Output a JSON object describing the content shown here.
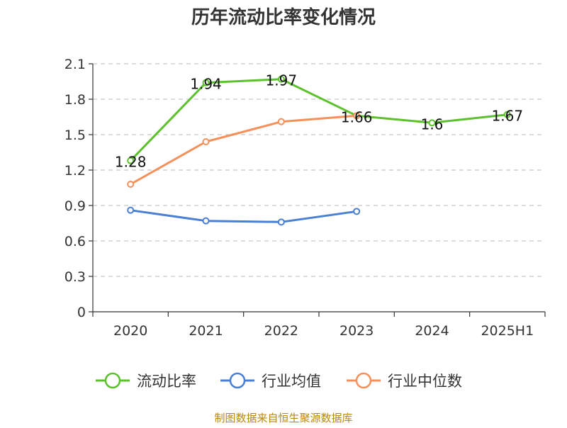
{
  "chart_data": {
    "type": "line",
    "title": "历年流动比率变化情况",
    "categories": [
      "2020",
      "2021",
      "2022",
      "2023",
      "2024",
      "2025H1"
    ],
    "ylim": [
      0,
      2.1
    ],
    "yticks": [
      "0",
      "0.3",
      "0.6",
      "0.9",
      "1.2",
      "1.5",
      "1.8",
      "2.1"
    ],
    "grid": true,
    "legend_position": "bottom",
    "series": [
      {
        "name": "流动比率",
        "color": "#5cc12d",
        "values": [
          1.28,
          1.94,
          1.97,
          1.66,
          1.6,
          1.67
        ],
        "labels": [
          "1.28",
          "1.94",
          "1.97",
          "1.66",
          "1.6",
          "1.67"
        ]
      },
      {
        "name": "行业均值",
        "color": "#4a7fd6",
        "values": [
          0.86,
          0.77,
          0.76,
          0.85,
          null,
          null
        ]
      },
      {
        "name": "行业中位数",
        "color": "#f5905a",
        "values": [
          1.08,
          1.44,
          1.61,
          1.66,
          null,
          null
        ]
      }
    ],
    "source": "制图数据来自恒生聚源数据库"
  }
}
